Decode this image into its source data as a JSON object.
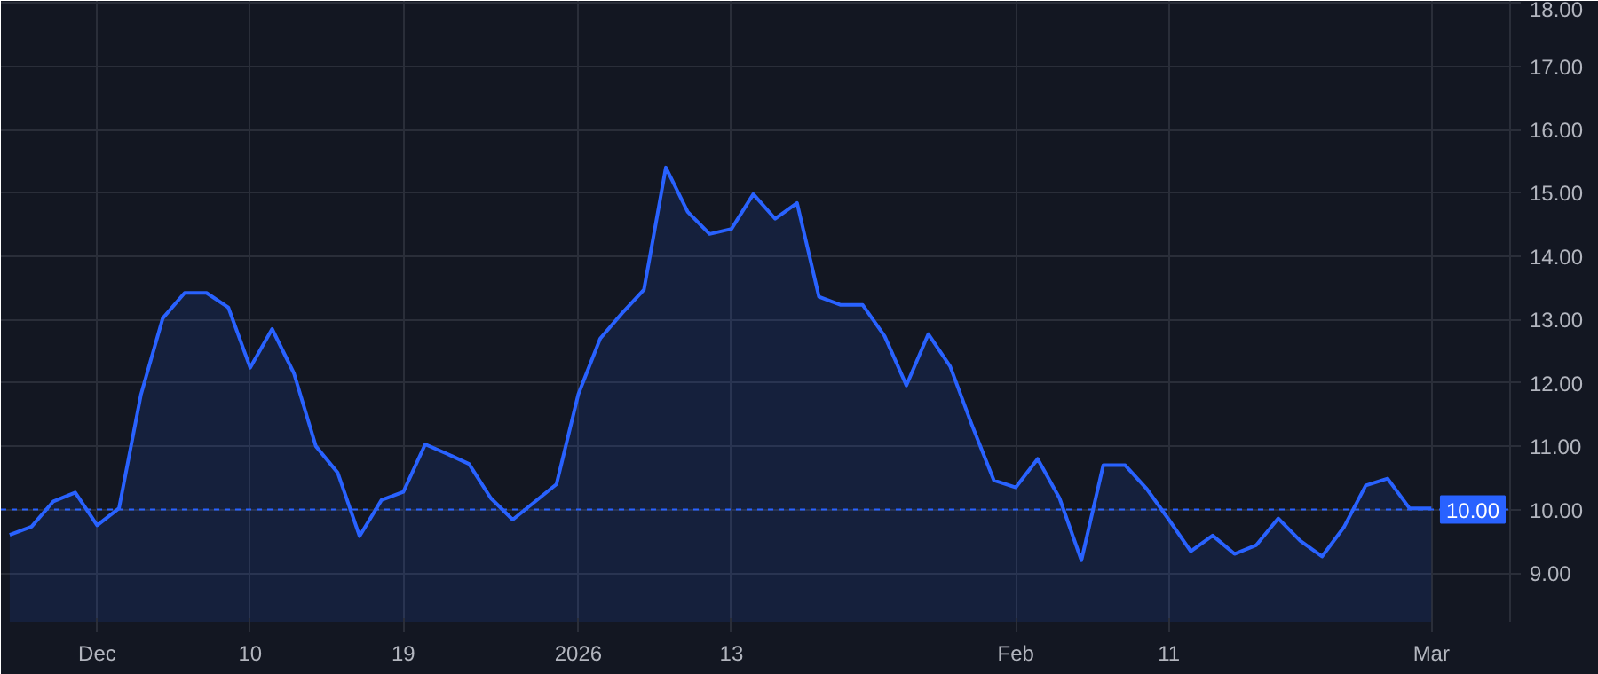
{
  "chart_data": {
    "type": "area",
    "categories": [
      null,
      null,
      null,
      null,
      "Dec",
      null,
      null,
      null,
      null,
      null,
      null,
      "10",
      null,
      null,
      null,
      null,
      null,
      null,
      "19",
      null,
      null,
      null,
      null,
      null,
      null,
      null,
      "2026",
      null,
      null,
      null,
      null,
      null,
      null,
      "13",
      null,
      null,
      null,
      null,
      null,
      null,
      null,
      null,
      null,
      null,
      null,
      null,
      "Feb",
      null,
      null,
      null,
      null,
      null,
      null,
      "11",
      null,
      null,
      null,
      null,
      null,
      null,
      null,
      null,
      null,
      null,
      null,
      "Mar"
    ],
    "series": [
      {
        "color": "#2962ff",
        "values": [
          9.6,
          9.73,
          10.13,
          10.27,
          9.75,
          10.02,
          11.81,
          13.02,
          13.42,
          13.42,
          13.19,
          12.24,
          12.85,
          12.15,
          11.0,
          10.58,
          9.58,
          10.15,
          10.28,
          11.03,
          10.88,
          10.72,
          10.18,
          9.84,
          10.12,
          10.4,
          11.82,
          12.7,
          13.1,
          13.47,
          15.4,
          14.7,
          14.35,
          14.43,
          14.98,
          14.59,
          14.84,
          13.36,
          13.23,
          13.23,
          12.74,
          11.96,
          12.77,
          12.26,
          11.33,
          10.46,
          10.35,
          10.8,
          10.18,
          9.2,
          10.7,
          10.7,
          10.32,
          9.84,
          9.34,
          9.59,
          9.3,
          9.44,
          9.86,
          9.51,
          9.26,
          9.72,
          10.38,
          10.49,
          10.02,
          10.02
        ]
      }
    ],
    "ylim": [
      8.23,
      18.03
    ],
    "yticks": [
      {
        "value": 9,
        "label": "9.00"
      },
      {
        "value": 10,
        "label": "10.00"
      },
      {
        "value": 11,
        "label": "11.00"
      },
      {
        "value": 12,
        "label": "12.00"
      },
      {
        "value": 13,
        "label": "13.00"
      },
      {
        "value": 14,
        "label": "14.00"
      },
      {
        "value": 15,
        "label": "15.00"
      },
      {
        "value": 16,
        "label": "16.00"
      },
      {
        "value": 17,
        "label": "17.00"
      },
      {
        "value": 18,
        "label": "18.00"
      }
    ],
    "ref_lines": [
      {
        "axis": "y",
        "value": 10,
        "label": "10.00",
        "color": "#2962ff",
        "line_style": "dashed"
      }
    ],
    "grid": true
  }
}
